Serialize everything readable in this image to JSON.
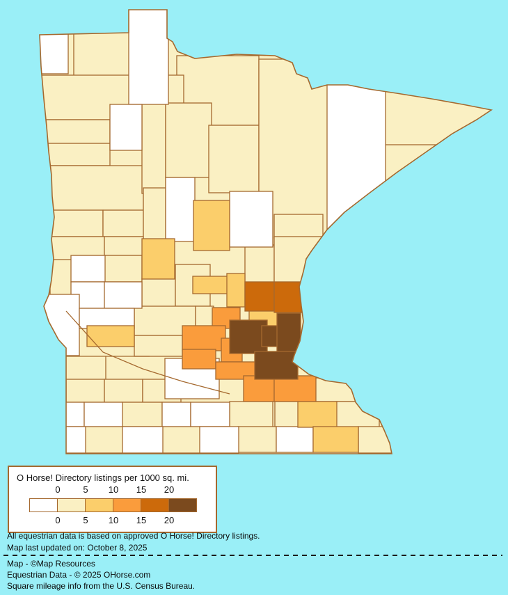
{
  "map": {
    "name": "Minnesota county choropleth of equestrian listings density",
    "water_color": "#9AEFF7",
    "county_border_color": "#A5692F",
    "state_base_color": "#FAF0C3",
    "counties": [
      [
        106,
        42,
        88,
        70,
        1
      ],
      [
        254,
        80,
        118,
        100,
        1
      ],
      [
        56,
        108,
        138,
        64,
        1
      ],
      [
        62,
        172,
        96,
        34,
        1
      ],
      [
        62,
        206,
        96,
        32,
        1
      ],
      [
        56,
        238,
        150,
        64,
        1
      ],
      [
        204,
        108,
        60,
        45,
        1
      ],
      [
        204,
        148,
        34,
        130,
        1
      ],
      [
        238,
        148,
        66,
        107,
        1
      ],
      [
        300,
        180,
        72,
        97,
        1
      ],
      [
        372,
        85,
        100,
        272,
        1
      ],
      [
        552,
        100,
        166,
        108,
        1
      ],
      [
        56,
        302,
        92,
        38,
        1
      ],
      [
        148,
        302,
        58,
        38,
        1
      ],
      [
        206,
        270,
        32,
        76,
        1
      ],
      [
        56,
        340,
        94,
        40,
        1
      ],
      [
        150,
        340,
        56,
        40,
        1
      ],
      [
        105,
        367,
        100,
        78,
        1
      ],
      [
        72,
        373,
        33,
        52,
        1
      ],
      [
        150,
        367,
        54,
        38,
        1
      ],
      [
        204,
        400,
        48,
        42,
        1
      ],
      [
        252,
        380,
        50,
        60,
        1
      ],
      [
        352,
        352,
        42,
        55,
        1
      ],
      [
        394,
        308,
        70,
        34,
        1
      ],
      [
        394,
        340,
        70,
        66,
        1
      ],
      [
        193,
        440,
        88,
        42,
        1
      ],
      [
        281,
        440,
        26,
        30,
        1
      ],
      [
        193,
        482,
        69,
        30,
        1
      ],
      [
        95,
        545,
        55,
        33,
        1
      ],
      [
        150,
        545,
        55,
        33,
        1
      ],
      [
        205,
        545,
        55,
        33,
        1
      ],
      [
        175,
        578,
        58,
        35,
        1
      ],
      [
        330,
        577,
        62,
        37,
        1
      ],
      [
        395,
        577,
        35,
        37,
        1
      ],
      [
        122,
        613,
        55,
        38,
        1
      ],
      [
        233,
        613,
        55,
        38,
        1
      ],
      [
        342,
        613,
        55,
        37,
        1
      ],
      [
        440,
        543,
        78,
        34,
        1
      ],
      [
        483,
        577,
        62,
        37,
        1
      ],
      [
        515,
        613,
        48,
        38,
        1
      ],
      [
        50,
        42,
        48,
        64,
        0
      ],
      [
        185,
        10,
        57,
        140,
        0
      ],
      [
        158,
        150,
        46,
        66,
        0
      ],
      [
        238,
        255,
        42,
        92,
        0
      ],
      [
        330,
        275,
        62,
        80,
        0
      ],
      [
        470,
        85,
        84,
        258,
        0
      ],
      [
        102,
        367,
        49,
        38,
        0
      ],
      [
        102,
        405,
        49,
        38,
        0
      ],
      [
        150,
        405,
        54,
        38,
        0
      ],
      [
        50,
        423,
        64,
        88,
        0
      ],
      [
        114,
        443,
        79,
        29,
        0
      ],
      [
        237,
        515,
        78,
        58,
        0
      ],
      [
        75,
        578,
        46,
        35,
        0
      ],
      [
        121,
        578,
        55,
        35,
        0
      ],
      [
        233,
        578,
        41,
        35,
        0
      ],
      [
        274,
        578,
        56,
        35,
        0
      ],
      [
        78,
        613,
        45,
        38,
        0
      ],
      [
        176,
        613,
        58,
        38,
        0
      ],
      [
        287,
        613,
        56,
        38,
        0
      ],
      [
        397,
        613,
        53,
        37,
        0
      ],
      [
        278,
        288,
        52,
        72,
        2
      ],
      [
        204,
        343,
        47,
        58,
        2
      ],
      [
        125,
        468,
        68,
        30,
        2
      ],
      [
        277,
        397,
        53,
        25,
        2
      ],
      [
        326,
        393,
        26,
        48,
        2
      ],
      [
        358,
        445,
        44,
        26,
        2
      ],
      [
        428,
        577,
        56,
        37,
        2
      ],
      [
        450,
        613,
        65,
        37,
        2
      ],
      [
        305,
        442,
        40,
        30,
        3
      ],
      [
        262,
        468,
        62,
        36,
        3
      ],
      [
        262,
        502,
        48,
        28,
        3
      ],
      [
        318,
        486,
        30,
        34,
        3
      ],
      [
        310,
        520,
        60,
        25,
        3
      ],
      [
        350,
        540,
        44,
        37,
        3
      ],
      [
        394,
        540,
        60,
        37,
        3
      ],
      [
        352,
        405,
        42,
        42,
        4
      ],
      [
        394,
        405,
        40,
        44,
        4
      ],
      [
        330,
        460,
        54,
        48,
        5
      ],
      [
        376,
        468,
        26,
        30,
        5
      ],
      [
        398,
        450,
        34,
        70,
        5
      ],
      [
        366,
        505,
        62,
        40,
        5
      ]
    ]
  },
  "legend": {
    "title": "O Horse! Directory listings per 1000 sq. mi.",
    "ticks": [
      "0",
      "5",
      "10",
      "15",
      "20"
    ],
    "bucket_colors": [
      "#FFFFFF",
      "#FAF0C3",
      "#FBCE6B",
      "#FA9C3C",
      "#CC6A0B",
      "#7B4A1E"
    ]
  },
  "notes": {
    "line1": "All equestrian data is based on approved O Horse! Directory listings.",
    "line2": "Map last updated on: October 8, 2025"
  },
  "credits": {
    "line1": "Map - ©Map Resources",
    "line2": "Equestrian Data - © 2025 OHorse.com",
    "line3": "Square mileage info from the U.S. Census Bureau."
  }
}
